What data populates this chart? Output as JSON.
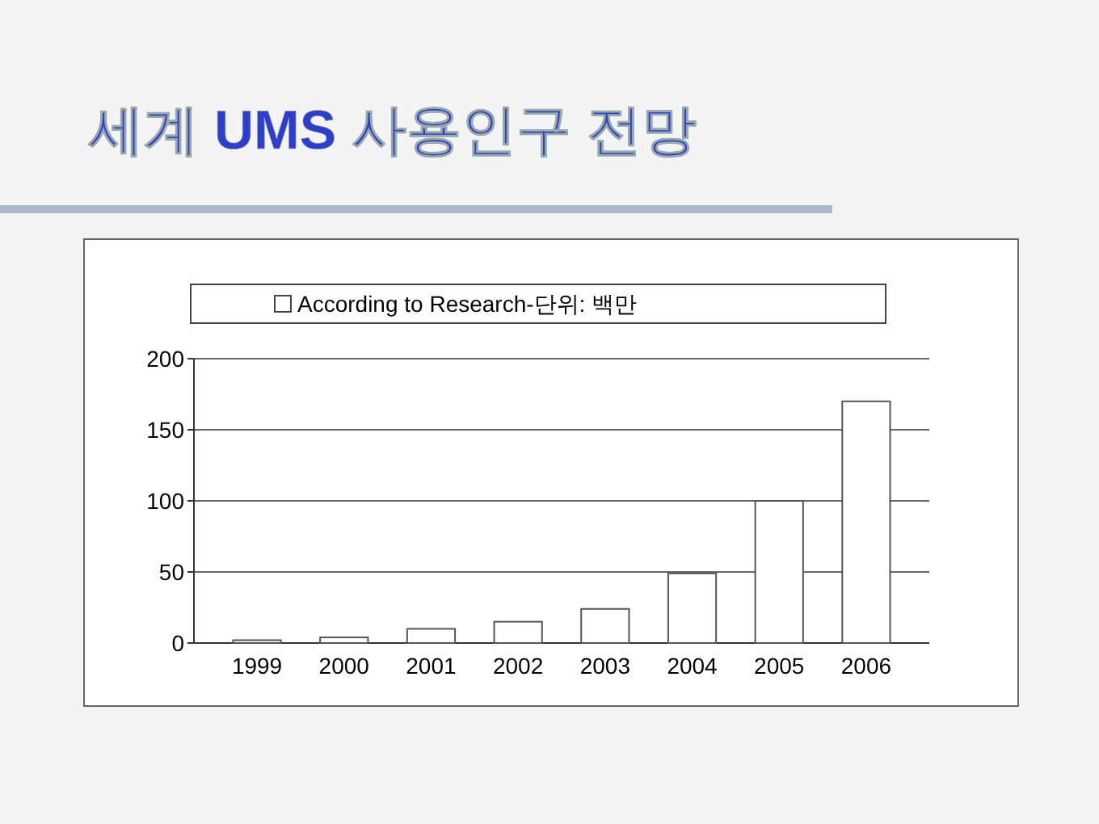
{
  "chart_data": {
    "type": "bar",
    "title": "세계 UMS 사용인구 전망",
    "categories": [
      "1999",
      "2000",
      "2001",
      "2002",
      "2003",
      "2004",
      "2005",
      "2006"
    ],
    "series": [
      {
        "name": "According to Research-단위: 백만",
        "color": "#ffffff",
        "values": [
          2,
          4,
          10,
          15,
          24,
          49,
          100,
          170
        ]
      }
    ],
    "ylim": [
      0,
      200
    ],
    "yticks": [
      0,
      50,
      100,
      150,
      200
    ],
    "grid": "y",
    "legend": "top"
  }
}
